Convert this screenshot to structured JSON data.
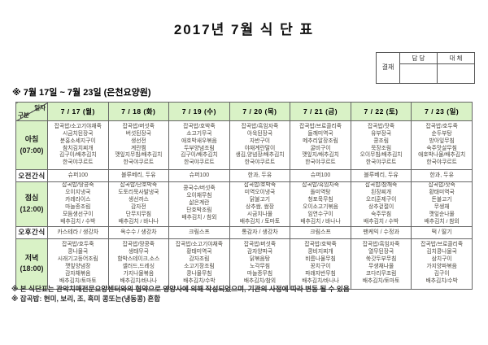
{
  "title": "2017년 7월 식 단 표",
  "approval": {
    "stamp": "결재",
    "cols": [
      "담 당",
      "대 체"
    ]
  },
  "subtitle": "※ 7월 17일 ~ 7월 23일 (은천요양원)",
  "table": {
    "corner_top": "일자",
    "corner_bottom": "구분",
    "dates": [
      "7 / 17 (월)",
      "7 / 18 (화)",
      "7 / 19 (수)",
      "7 / 20 (목)",
      "7 / 21 (금)",
      "7 / 22 (토)",
      "7 / 23 (일)"
    ],
    "rows": [
      {
        "label": "아침",
        "time": "(07:00)",
        "kind": "meal",
        "css": "r-breakfast",
        "cells": [
          [
            "잡곡밥/소고기야채죽",
            "시금치된장국",
            "분홍소세지구이",
            "참치김치찌개",
            "김구이/배추김치",
            "한국야쿠르트"
          ],
          [
            "잡곡밥/버섯죽",
            "버섯된장국",
            "생선전",
            "계란찜",
            "깻잎지무침/배추김치",
            "한국야쿠르트"
          ],
          [
            "잡곡밥/호박죽",
            "소고기무국",
            "애호박새우볶음",
            "두부양념조림",
            "김구이/배추김치",
            "한국야쿠르트"
          ],
          [
            "잡곡밥/흑임자죽",
            "아욱된장국",
            "자반구이",
            "야채계란말이",
            "생김,양념장/배추김치",
            "한국야쿠르트"
          ],
          [
            "잡곡밥/브로콜리죽",
            "들깨미역국",
            "메추리알장조림",
            "굴비구이",
            "깻잎지/배추김치",
            "한국야쿠르트"
          ],
          [
            "잡곡밥/잣죽",
            "유부장국",
            "콩조림",
            "묵장조림",
            "오이무침/배추김치",
            "한국야쿠르트"
          ],
          [
            "잡곡밥/호두죽",
            "순두부탕",
            "방아잎무침",
            "숙주맛살무침",
            "애호박나물/배추김치",
            "한국야쿠르트"
          ]
        ]
      },
      {
        "label": "오전간식",
        "time": "",
        "kind": "snack",
        "css": "r-amsnack",
        "cells": [
          "슈퍼100",
          "블루베리, 두유",
          "슈퍼100",
          "한과, 두유",
          "슈퍼100",
          "블루베리, 두유",
          "한과, 두유"
        ]
      },
      {
        "label": "점심",
        "time": "(12:00)",
        "kind": "meal",
        "css": "r-lunch",
        "cells": [
          [
            "잡곡밥/땅콩죽",
            "오이지냉국",
            "카레라이스",
            "마늘종조림",
            "모듬생선구이",
            "배추김치 / 수박"
          ],
          [
            "잡곡밥/단호박죽",
            "도토리묵사발냉국",
            "생선까스",
            "감자전",
            "단무지무침",
            "배추김치 / 바나나"
          ],
          [
            "콩국수/버섯죽",
            "오이채무침",
            "삶은계란",
            "단호박조림",
            "배추김치 / 참외"
          ],
          [
            "잡곡밥/호박죽",
            "미역오이냉국",
            "닭불고기",
            "상추쌈, 쌈장",
            "시금치나물",
            "배추김치 / 토마토"
          ],
          [
            "잡곡밥/흑임자죽",
            "돌미역탕",
            "청포묵무침",
            "오이소고기볶음",
            "임연수구이",
            "배추김치 / 바나나"
          ],
          [
            "잡곡밥/참깨죽",
            "된장찌개",
            "오리훈제구이",
            "상추겉절이",
            "숙주무침",
            "배추김치 / 수박"
          ],
          [
            "잡곡밥/잣죽",
            "황태미역국",
            "돈불고기",
            "무생채",
            "깻잎순나물",
            "배추김치 / 참외"
          ]
        ]
      },
      {
        "label": "오후간식",
        "time": "",
        "kind": "snack",
        "css": "r-pmsnack",
        "cells": [
          "카스테라 / 생강차",
          "옥수수 / 생강차",
          "크림스프",
          "통감자 / 생강차",
          "크림스프",
          "팬케익 / 수정과",
          "떡 / 딸기"
        ]
      },
      {
        "label": "저녁",
        "time": "(18:00)",
        "kind": "meal",
        "css": "r-dinner",
        "cells": [
          [
            "잡곡밥/호두죽",
            "콩나물국",
            "시래기고등어조림",
            "깻잎양념장",
            "감자채볶음",
            "배추김치/토마토"
          ],
          [
            "잡곡밥/땅콩죽",
            "생태무국",
            "함박스테이크,소스",
            "샐러드,드레싱",
            "가지나물볶음",
            "배추김치/바나나"
          ],
          [
            "잡곡밥/소고기야채죽",
            "황태미역국",
            "감자조림",
            "소고기장조림",
            "콩나물무침",
            "배추김치/수박"
          ],
          [
            "잡곡밥/버섯죽",
            "감자양파국",
            "닭볶음탕",
            "노각무침",
            "마늘종무침",
            "배추김치/참외"
          ],
          [
            "잡곡밥/호박죽",
            "콩비지찌개",
            "비름나물무침",
            "꽁치구이",
            "파래자반무침",
            "배추김치/바나나"
          ],
          [
            "잡곡밥/흑임자죽",
            "열무된장국",
            "쑥갓두부무침",
            "무생채나물",
            "코다리무조림",
            "배추김치/토마토"
          ],
          [
            "잡곡밥/브로콜리죽",
            "김치콩나물국",
            "삼치구이",
            "가지양파볶음",
            "김구이",
            "배추김치/수박"
          ]
        ]
      }
    ]
  },
  "footnotes": [
    "※ 본 식단표는 관악치매전문요양센터와의 협약으로 영양사에 의해 작성되었으며, 기관의 사정에 따라 변동 될 수 있음",
    "※ 잡곡밥: 현미, 보리, 조, 흑미 콩또는(냉동콩) 혼합"
  ],
  "colors": {
    "header_green": "#d9f2c6",
    "border": "#666666",
    "text": "#4a463e"
  }
}
